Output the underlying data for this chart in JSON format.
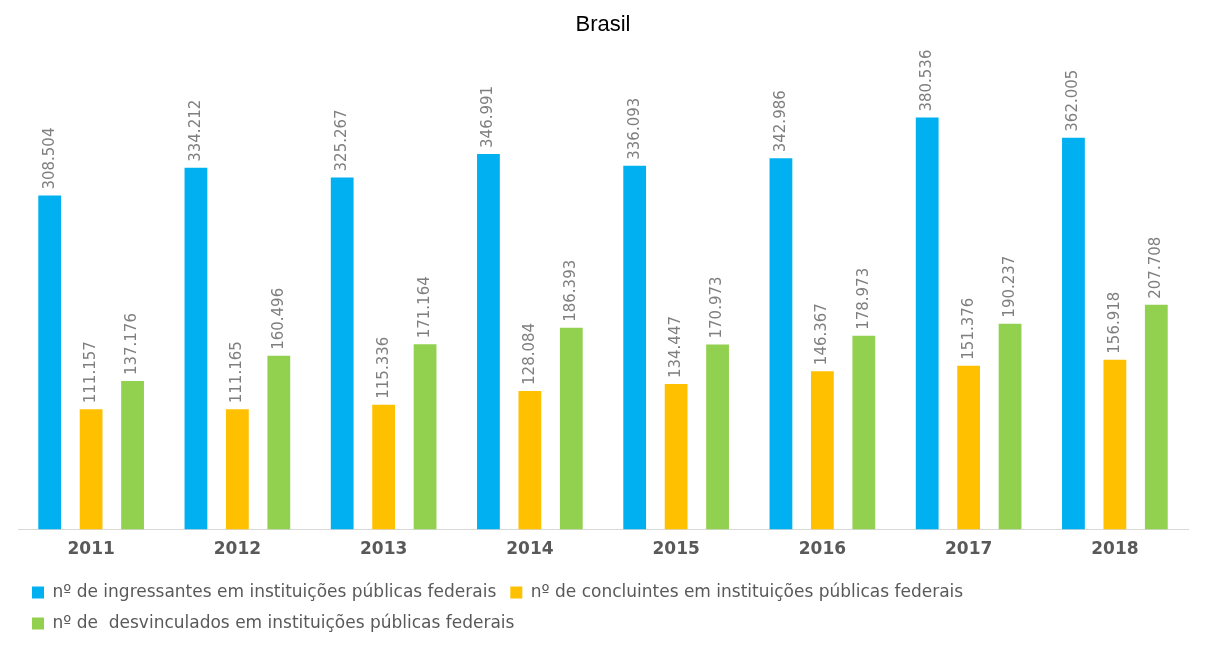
{
  "chart_data": {
    "type": "bar",
    "title": "Brasil",
    "categories": [
      "2011",
      "2012",
      "2013",
      "2014",
      "2015",
      "2016",
      "2017",
      "2018"
    ],
    "series": [
      {
        "name": "nº de ingressantes em instituições públicas federais",
        "color": "#00b0f0",
        "values": [
          308504,
          334212,
          325267,
          346991,
          336093,
          342986,
          380536,
          362005
        ],
        "value_labels": [
          "308.504",
          "334.212",
          "325.267",
          "346.991",
          "336.093",
          "342.986",
          "380.536",
          "362.005"
        ]
      },
      {
        "name": "nº de concluintes em instituições públicas federais",
        "color": "#ffc000",
        "values": [
          111157,
          111165,
          115336,
          128084,
          134447,
          146367,
          151376,
          156918
        ],
        "value_labels": [
          "111.157",
          "111.165",
          "115.336",
          "128.084",
          "134.447",
          "146.367",
          "151.376",
          "156.918"
        ]
      },
      {
        "name": "nº de  desvinculados em instituições públicas federais",
        "color": "#92d050",
        "values": [
          137176,
          160496,
          171164,
          186393,
          170973,
          178973,
          190237,
          207708
        ],
        "value_labels": [
          "137.176",
          "160.496",
          "171.164",
          "186.393",
          "170.973",
          "178.973",
          "190.237",
          "207.708"
        ]
      }
    ],
    "grid": false,
    "legend": "bottom"
  }
}
